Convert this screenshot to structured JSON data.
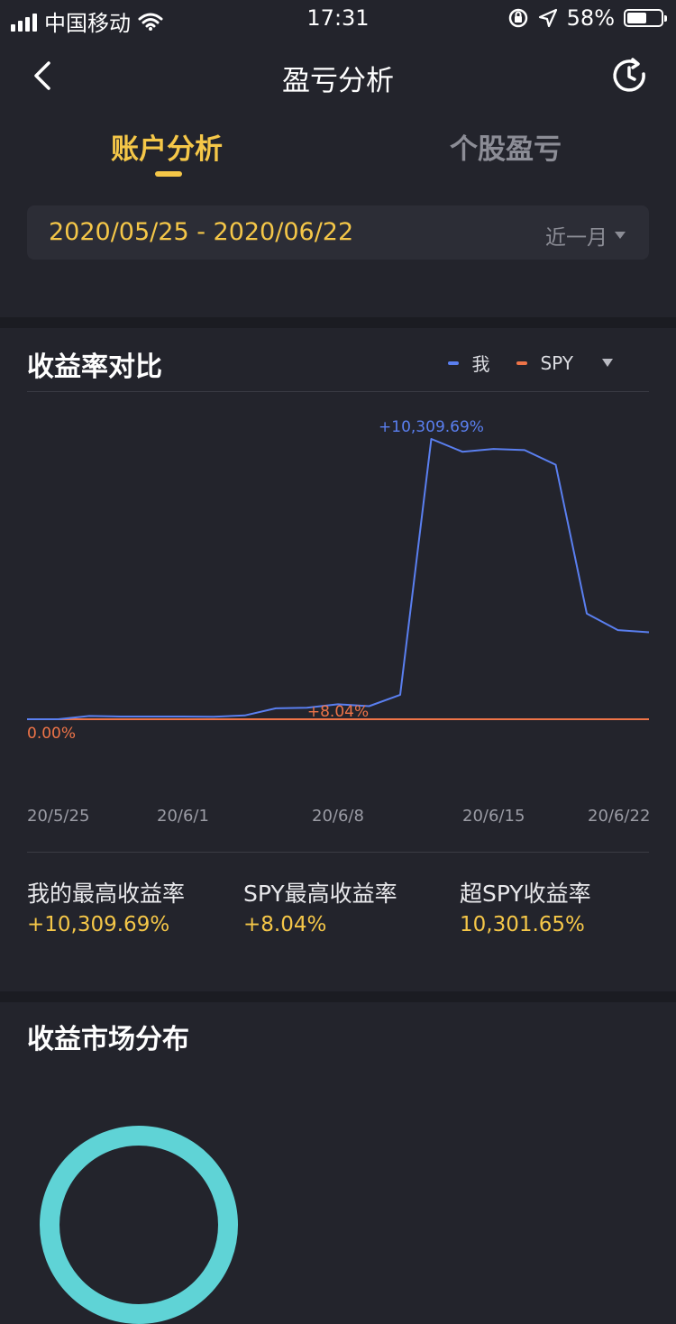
{
  "status_bar": {
    "carrier": "中国移动",
    "time": "17:31",
    "battery": "58%",
    "battery_level": 0.58,
    "icons": [
      "signal-icon",
      "wifi-icon",
      "rotation-lock-icon",
      "location-arrow-icon",
      "battery-icon"
    ]
  },
  "nav": {
    "title": "盈亏分析",
    "back_icon": "chevron-left-icon",
    "refresh_icon": "refresh-icon"
  },
  "tabs": [
    {
      "label": "账户分析",
      "active": true
    },
    {
      "label": "个股盈亏",
      "active": false
    }
  ],
  "date_filter": {
    "range": "2020/05/25 - 2020/06/22",
    "period": "近一月"
  },
  "compare": {
    "title": "收益率对比",
    "legend": [
      {
        "label": "我",
        "color": "#5a7ff0"
      },
      {
        "label": "SPY",
        "color": "#ee7448"
      }
    ]
  },
  "chart_data": {
    "type": "line",
    "x_ticks": [
      "20/5/25",
      "20/6/1",
      "20/6/8",
      "20/6/15",
      "20/6/22"
    ],
    "series": [
      {
        "name": "我",
        "color": "#5a7ff0",
        "values": [
          0,
          0,
          120,
          100,
          100,
          100,
          90,
          140,
          400,
          420,
          550,
          480,
          900,
          10309.69,
          9840,
          9940,
          9900,
          9360,
          3890,
          3280,
          3200
        ]
      },
      {
        "name": "SPY",
        "color": "#ee7448",
        "values": [
          0,
          0,
          0,
          0,
          0,
          0,
          0,
          0,
          0,
          0,
          8.04,
          0,
          0,
          0,
          0,
          0,
          0,
          0,
          0,
          0,
          0
        ]
      }
    ],
    "annotations": {
      "max_mine": "+10,309.69%",
      "max_spy": "+8.04%",
      "baseline": "0.00%"
    },
    "ylim": [
      0,
      12000
    ],
    "grid": false
  },
  "stats": [
    {
      "label": "我的最高收益率",
      "value": "+10,309.69%"
    },
    {
      "label": "SPY最高收益率",
      "value": "+8.04%"
    },
    {
      "label": "超SPY收益率",
      "value": "10,301.65%"
    }
  ],
  "distribution": {
    "title": "收益市场分布",
    "ring_color": "#5fd3d6"
  }
}
